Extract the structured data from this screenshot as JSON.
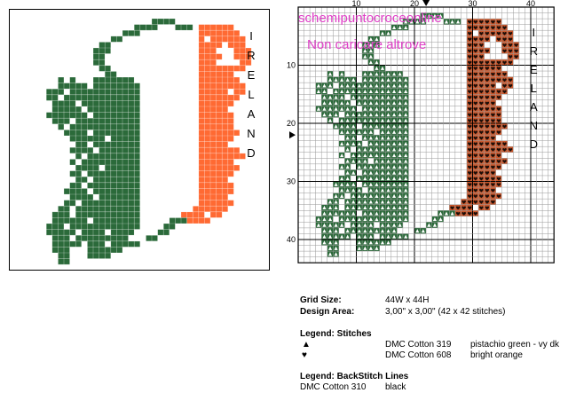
{
  "preview": {
    "vertical_word": "IRELAND"
  },
  "chart": {
    "top_ticks": [
      "10",
      "20",
      "30",
      "40"
    ],
    "left_ticks": [
      "10",
      "20",
      "30",
      "40"
    ],
    "vertical_word": "IRELAND",
    "watermark_line1": "schemipuntocroceonline",
    "watermark_line2": "Non caricare altrove",
    "colors": {
      "green": "#2b6a3a",
      "orange": "#ff6a33",
      "orange_dark": "#c9572c",
      "grid_minor": "#9a9a9a",
      "grid_major": "#000000",
      "white_cell": "#ffffff"
    }
  },
  "info": {
    "grid_size_label": "Grid Size:",
    "grid_size_value": "44W x 44H",
    "design_area_label": "Design Area:",
    "design_area_value": "3,00\" x 3,00\"   (42 x 42 stitches)",
    "legend_stitches_title": "Legend: Stitches",
    "stitches": [
      {
        "symbol": "▲",
        "thread": "DMC Cotton 319",
        "color_name": "pistachio green - vy dk"
      },
      {
        "symbol": "♥",
        "thread": "DMC Cotton 608",
        "color_name": "bright orange"
      }
    ],
    "legend_backstitch_title": "Legend: BackStitch Lines",
    "backstitch": {
      "thread": "DMC Cotton 310",
      "color_name": "black"
    }
  }
}
